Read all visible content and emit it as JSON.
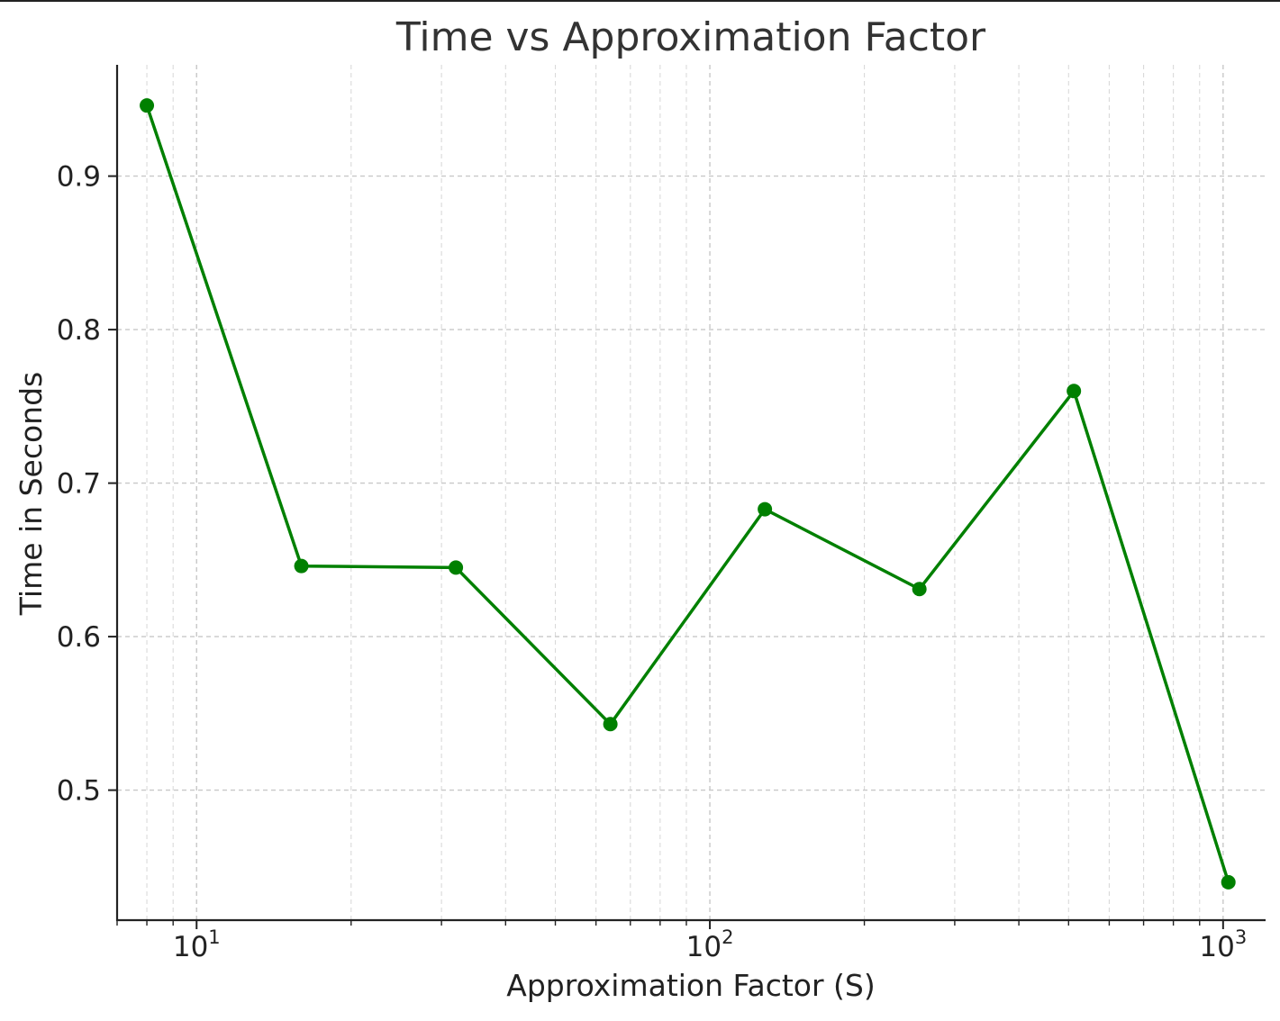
{
  "chart_data": {
    "type": "line",
    "title": "Time vs Approximation Factor",
    "xlabel": "Approximation Factor (S)",
    "ylabel": "Time in Seconds",
    "xscale": "log",
    "xlim": [
      7,
      1210
    ],
    "ylim": [
      0.4153,
      0.9725
    ],
    "grid": true,
    "grid_style": "dashed",
    "color": "#008000",
    "marker": "circle",
    "x_ticks": [
      {
        "value": 10,
        "base": "10",
        "exp": "1"
      },
      {
        "value": 100,
        "base": "10",
        "exp": "2"
      },
      {
        "value": 1000,
        "base": "10",
        "exp": "3"
      }
    ],
    "y_ticks": [
      {
        "value": 0.5,
        "label": "0.5"
      },
      {
        "value": 0.6,
        "label": "0.6"
      },
      {
        "value": 0.7,
        "label": "0.7"
      },
      {
        "value": 0.8,
        "label": "0.8"
      },
      {
        "value": 0.9,
        "label": "0.9"
      }
    ],
    "series": [
      {
        "x": [
          8,
          16,
          32,
          64,
          128,
          256,
          512,
          1024
        ],
        "y": [
          0.946,
          0.646,
          0.645,
          0.543,
          0.683,
          0.631,
          0.76,
          0.44
        ]
      }
    ]
  }
}
